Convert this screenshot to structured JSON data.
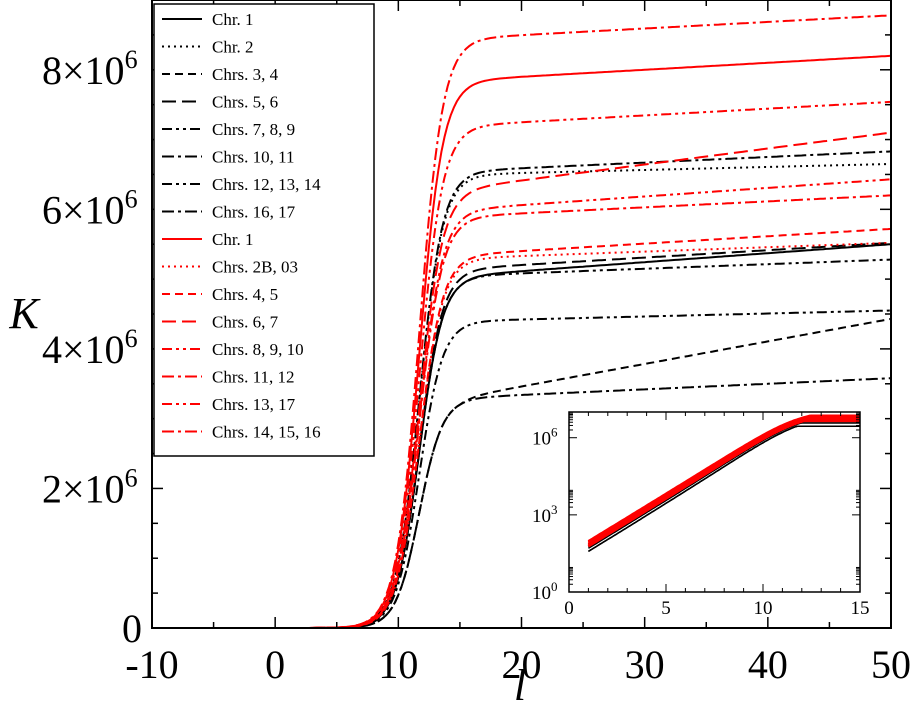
{
  "chart_data": {
    "type": "line",
    "xlabel": "l",
    "ylabel": "K",
    "xlim": [
      -10,
      50
    ],
    "ylim": [
      0,
      9000000
    ],
    "x_ticks": [
      -10,
      0,
      10,
      20,
      30,
      40,
      50
    ],
    "x_tick_labels": [
      "-10",
      "0",
      "10",
      "20",
      "30",
      "40",
      "50"
    ],
    "y_ticks": [
      0,
      2000000,
      4000000,
      6000000,
      8000000
    ],
    "y_tick_labels": [
      {
        "mantissa": "0",
        "exponent": ""
      },
      {
        "mantissa": "2×10",
        "exponent": "6"
      },
      {
        "mantissa": "4×10",
        "exponent": "6"
      },
      {
        "mantissa": "6×10",
        "exponent": "6"
      },
      {
        "mantissa": "8×10",
        "exponent": "6"
      }
    ],
    "grid": false,
    "legend_position": "top-left",
    "series": [
      {
        "name": "Chr. 1",
        "color": "#000000",
        "dash": "none",
        "plateau": 5050000,
        "end": 5500000
      },
      {
        "name": "Chr. 2",
        "color": "#000000",
        "dash": "dotted",
        "plateau": 6500000,
        "end": 6650000
      },
      {
        "name": "Chrs. 3, 4",
        "color": "#000000",
        "dash": "dash-short",
        "plateau": 3300000,
        "end": 4430000
      },
      {
        "name": "Chrs. 5, 6",
        "color": "#000000",
        "dash": "dash-long",
        "plateau": 5150000,
        "end": 5520000
      },
      {
        "name": "Chrs. 7, 8, 9",
        "color": "#000000",
        "dash": "dash-dot-dot",
        "plateau": 5050000,
        "end": 5280000
      },
      {
        "name": "Chrs. 10, 11",
        "color": "#000000",
        "dash": "dash-dot",
        "plateau": 6550000,
        "end": 6830000
      },
      {
        "name": "Chrs. 12, 13, 14",
        "color": "#000000",
        "dash": "dash-dot-dot",
        "plateau": 4400000,
        "end": 4550000
      },
      {
        "name": "Chrs. 16, 17",
        "color": "#000000",
        "dash": "dash-dot",
        "plateau": 3300000,
        "end": 3580000
      },
      {
        "name": "Chr. 1",
        "color": "#ff0000",
        "dash": "none",
        "plateau": 7850000,
        "end": 8200000
      },
      {
        "name": "Chrs. 2B, 03",
        "color": "#ff0000",
        "dash": "dotted",
        "plateau": 5300000,
        "end": 5520000
      },
      {
        "name": "Chrs. 4, 5",
        "color": "#ff0000",
        "dash": "dash-short",
        "plateau": 5350000,
        "end": 5720000
      },
      {
        "name": "Chrs. 6, 7",
        "color": "#ff0000",
        "dash": "dash-long",
        "plateau": 6300000,
        "end": 7100000
      },
      {
        "name": "Chrs. 8, 9, 10",
        "color": "#ff0000",
        "dash": "dash-dot-dot",
        "plateau": 6000000,
        "end": 6430000
      },
      {
        "name": "Chrs. 11, 12",
        "color": "#ff0000",
        "dash": "dash-dot",
        "plateau": 5900000,
        "end": 6200000
      },
      {
        "name": "Chrs. 13, 17",
        "color": "#ff0000",
        "dash": "dash-dot-dot",
        "plateau": 7200000,
        "end": 7540000
      },
      {
        "name": "Chrs. 14, 15, 16",
        "color": "#ff0000",
        "dash": "dash-dot",
        "plateau": 8450000,
        "end": 8780000
      }
    ],
    "inset": {
      "type": "line",
      "yscale": "log",
      "xlim": [
        0,
        15
      ],
      "ylim": [
        1,
        10000000
      ],
      "x_ticks": [
        0,
        5,
        10,
        15
      ],
      "x_tick_labels": [
        "0",
        "5",
        "10",
        "15"
      ],
      "y_ticks": [
        1,
        1000,
        1000000
      ],
      "y_tick_labels": [
        {
          "mantissa": "10",
          "exponent": "0"
        },
        {
          "mantissa": "10",
          "exponent": "3"
        },
        {
          "mantissa": "10",
          "exponent": "6"
        }
      ],
      "legend_position": "bottom-right"
    }
  }
}
